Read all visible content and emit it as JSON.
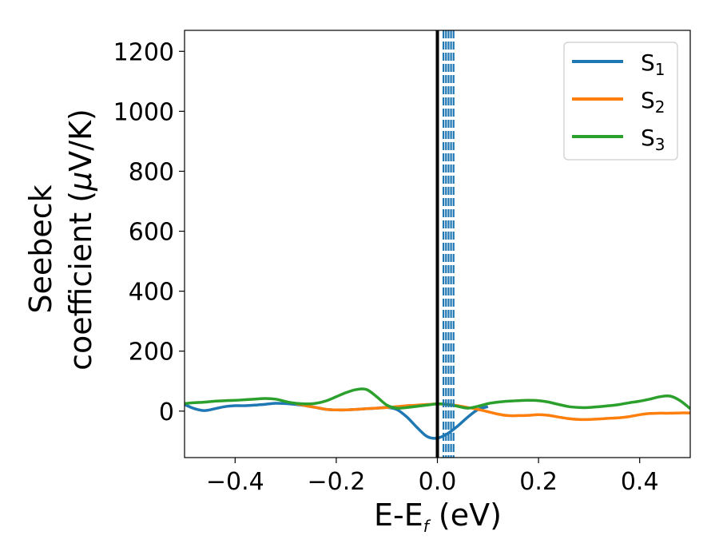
{
  "chart_data": {
    "type": "line",
    "xlabel_main": "E-E",
    "xlabel_sub": "f",
    "xlabel_unit": " (eV)",
    "ylabel_line1": "Seebeck",
    "ylabel_line2_a": "coefficient  (",
    "ylabel_line2_mu": "μ",
    "ylabel_line2_b": "V/K)",
    "xlim": [
      -0.5,
      0.5
    ],
    "ylim": [
      -155,
      1270
    ],
    "x_ticks": [
      -0.4,
      -0.2,
      0.0,
      0.2,
      0.4
    ],
    "x_tick_labels": [
      "−0.4",
      "−0.2",
      "0.0",
      "0.2",
      "0.4"
    ],
    "y_ticks": [
      0,
      200,
      400,
      600,
      800,
      1000,
      1200
    ],
    "y_tick_labels": [
      "0",
      "200",
      "400",
      "600",
      "800",
      "1000",
      "1200"
    ],
    "fermi_line_x": 0.0,
    "dashed_lines": {
      "color": "#1f77b4",
      "x": [
        0.012,
        0.017,
        0.022,
        0.027,
        0.032
      ]
    },
    "legend_position": "top-right",
    "series": [
      {
        "name_base": "S",
        "name_sub": "1",
        "color": "#1f77b4",
        "x": [
          -0.5,
          -0.48,
          -0.46,
          -0.44,
          -0.42,
          -0.4,
          -0.38,
          -0.36,
          -0.34,
          -0.32,
          -0.3,
          -0.28,
          -0.26,
          -0.24,
          -0.22,
          -0.2,
          -0.18,
          -0.16,
          -0.14,
          -0.12,
          -0.1,
          -0.08,
          -0.06,
          -0.04,
          -0.02,
          0.0,
          0.02,
          0.04,
          0.06,
          0.08,
          0.1
        ],
        "y": [
          22,
          8,
          2,
          8,
          15,
          18,
          18,
          20,
          23,
          26,
          25,
          22,
          18,
          12,
          6,
          4,
          4,
          6,
          8,
          10,
          12,
          5,
          -20,
          -55,
          -85,
          -90,
          -75,
          -50,
          -20,
          5,
          15
        ]
      },
      {
        "name_base": "S",
        "name_sub": "2",
        "color": "#ff7f0e",
        "x": [
          -0.28,
          -0.26,
          -0.24,
          -0.22,
          -0.2,
          -0.18,
          -0.16,
          -0.14,
          -0.12,
          -0.1,
          -0.08,
          -0.06,
          -0.04,
          -0.02,
          0.0,
          0.02,
          0.04,
          0.06,
          0.08,
          0.1,
          0.12,
          0.14,
          0.16,
          0.18,
          0.2,
          0.22,
          0.24,
          0.26,
          0.28,
          0.3,
          0.32,
          0.34,
          0.36,
          0.38,
          0.4,
          0.42,
          0.44,
          0.46,
          0.48,
          0.5
        ],
        "y": [
          25,
          18,
          12,
          6,
          4,
          4,
          6,
          8,
          10,
          12,
          15,
          18,
          20,
          22,
          24,
          22,
          18,
          12,
          6,
          -2,
          -10,
          -15,
          -15,
          -14,
          -12,
          -14,
          -20,
          -25,
          -28,
          -28,
          -26,
          -24,
          -22,
          -18,
          -12,
          -8,
          -7,
          -7,
          -6,
          -6
        ]
      },
      {
        "name_base": "S",
        "name_sub": "3",
        "color": "#2ca02c",
        "x": [
          -0.5,
          -0.48,
          -0.46,
          -0.44,
          -0.42,
          -0.4,
          -0.38,
          -0.36,
          -0.34,
          -0.32,
          -0.3,
          -0.28,
          -0.26,
          -0.24,
          -0.22,
          -0.2,
          -0.18,
          -0.16,
          -0.14,
          -0.12,
          -0.1,
          -0.08,
          -0.06,
          -0.04,
          -0.02,
          0.0,
          0.02,
          0.04,
          0.06,
          0.08,
          0.1,
          0.12,
          0.14,
          0.16,
          0.18,
          0.2,
          0.22,
          0.24,
          0.26,
          0.28,
          0.3,
          0.32,
          0.34,
          0.36,
          0.38,
          0.4,
          0.42,
          0.44,
          0.46,
          0.48,
          0.5
        ],
        "y": [
          25,
          28,
          30,
          33,
          35,
          36,
          38,
          40,
          42,
          40,
          32,
          26,
          24,
          26,
          34,
          48,
          62,
          72,
          72,
          48,
          20,
          10,
          12,
          16,
          20,
          24,
          22,
          16,
          10,
          16,
          25,
          30,
          33,
          35,
          36,
          35,
          30,
          22,
          15,
          12,
          12,
          15,
          18,
          22,
          28,
          33,
          40,
          48,
          50,
          35,
          8
        ]
      }
    ]
  }
}
